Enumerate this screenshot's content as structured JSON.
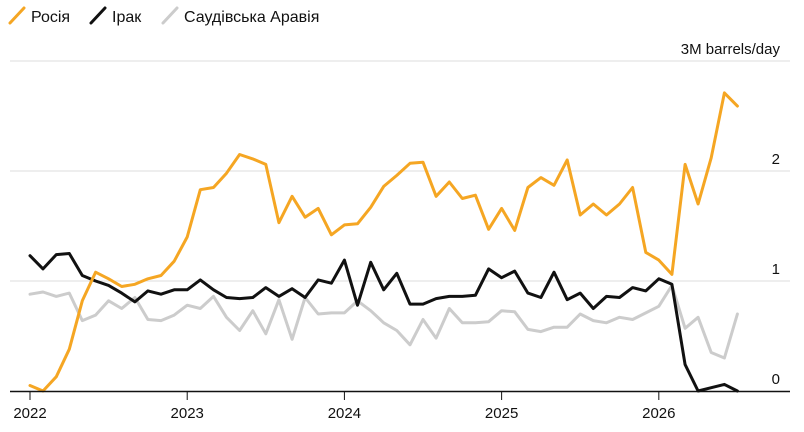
{
  "chart_data": {
    "type": "line",
    "ylabel": "3M barrels/day",
    "ylim": [
      0,
      3
    ],
    "yticks": [
      0,
      1,
      2
    ],
    "xlim": [
      2022.0,
      2026.65
    ],
    "xticks": [
      {
        "value": 2022,
        "label": "2022"
      },
      {
        "value": 2023,
        "label": "2023"
      },
      {
        "value": 2024,
        "label": "2024"
      },
      {
        "value": 2025,
        "label": "2025"
      },
      {
        "value": 2026,
        "label": "2026"
      }
    ],
    "grid": true,
    "legend": "top-left",
    "x": [
      2022.0,
      2022.083,
      2022.167,
      2022.25,
      2022.333,
      2022.417,
      2022.5,
      2022.583,
      2022.667,
      2022.75,
      2022.833,
      2022.917,
      2023.0,
      2023.083,
      2023.167,
      2023.25,
      2023.333,
      2023.417,
      2023.5,
      2023.583,
      2023.667,
      2023.75,
      2023.833,
      2023.917,
      2024.0,
      2024.083,
      2024.167,
      2024.25,
      2024.333,
      2024.417,
      2024.5,
      2024.583,
      2024.667,
      2024.75,
      2024.833,
      2024.917,
      2025.0,
      2025.083,
      2025.167,
      2025.25,
      2025.333,
      2025.417,
      2025.5,
      2025.583,
      2025.667,
      2025.75,
      2025.833,
      2025.917,
      2026.0,
      2026.083,
      2026.167,
      2026.25,
      2026.333,
      2026.417,
      2026.5
    ],
    "series": [
      {
        "name": "Росія",
        "color": "#f5a623",
        "values": [
          0.05,
          0.0,
          0.13,
          0.38,
          0.82,
          1.08,
          1.02,
          0.95,
          0.97,
          1.02,
          1.05,
          1.18,
          1.4,
          1.83,
          1.85,
          1.98,
          2.15,
          2.11,
          2.06,
          1.53,
          1.77,
          1.58,
          1.66,
          1.42,
          1.51,
          1.52,
          1.67,
          1.86,
          1.96,
          2.07,
          2.08,
          1.77,
          1.9,
          1.75,
          1.78,
          1.47,
          1.66,
          1.46,
          1.85,
          1.94,
          1.87,
          2.1,
          1.6,
          1.7,
          1.6,
          1.7,
          1.85,
          1.26,
          1.19,
          1.06,
          2.06,
          1.7,
          2.12,
          2.71,
          2.59
        ]
      },
      {
        "name": "Ірак",
        "color": "#111111",
        "values": [
          1.23,
          1.11,
          1.24,
          1.25,
          1.05,
          1.0,
          0.96,
          0.89,
          0.81,
          0.91,
          0.88,
          0.92,
          0.92,
          1.01,
          0.92,
          0.85,
          0.84,
          0.85,
          0.94,
          0.86,
          0.93,
          0.85,
          1.01,
          0.98,
          1.19,
          0.78,
          1.17,
          0.92,
          1.07,
          0.79,
          0.79,
          0.84,
          0.86,
          0.86,
          0.87,
          1.11,
          1.03,
          1.09,
          0.89,
          0.85,
          1.08,
          0.83,
          0.89,
          0.75,
          0.86,
          0.85,
          0.94,
          0.91,
          1.02,
          0.97,
          0.24,
          0.0,
          0.03,
          0.06,
          0.0
        ]
      },
      {
        "name": "Саудівська Аравія",
        "color": "#cccccc",
        "values": [
          0.88,
          0.9,
          0.86,
          0.89,
          0.64,
          0.69,
          0.82,
          0.75,
          0.85,
          0.65,
          0.64,
          0.69,
          0.78,
          0.75,
          0.86,
          0.67,
          0.55,
          0.73,
          0.52,
          0.83,
          0.47,
          0.85,
          0.7,
          0.71,
          0.71,
          0.82,
          0.73,
          0.62,
          0.55,
          0.42,
          0.65,
          0.48,
          0.75,
          0.62,
          0.62,
          0.63,
          0.73,
          0.72,
          0.56,
          0.54,
          0.58,
          0.58,
          0.7,
          0.64,
          0.62,
          0.67,
          0.65,
          0.71,
          0.77,
          0.96,
          0.57,
          0.67,
          0.35,
          0.3,
          0.7
        ]
      }
    ]
  }
}
